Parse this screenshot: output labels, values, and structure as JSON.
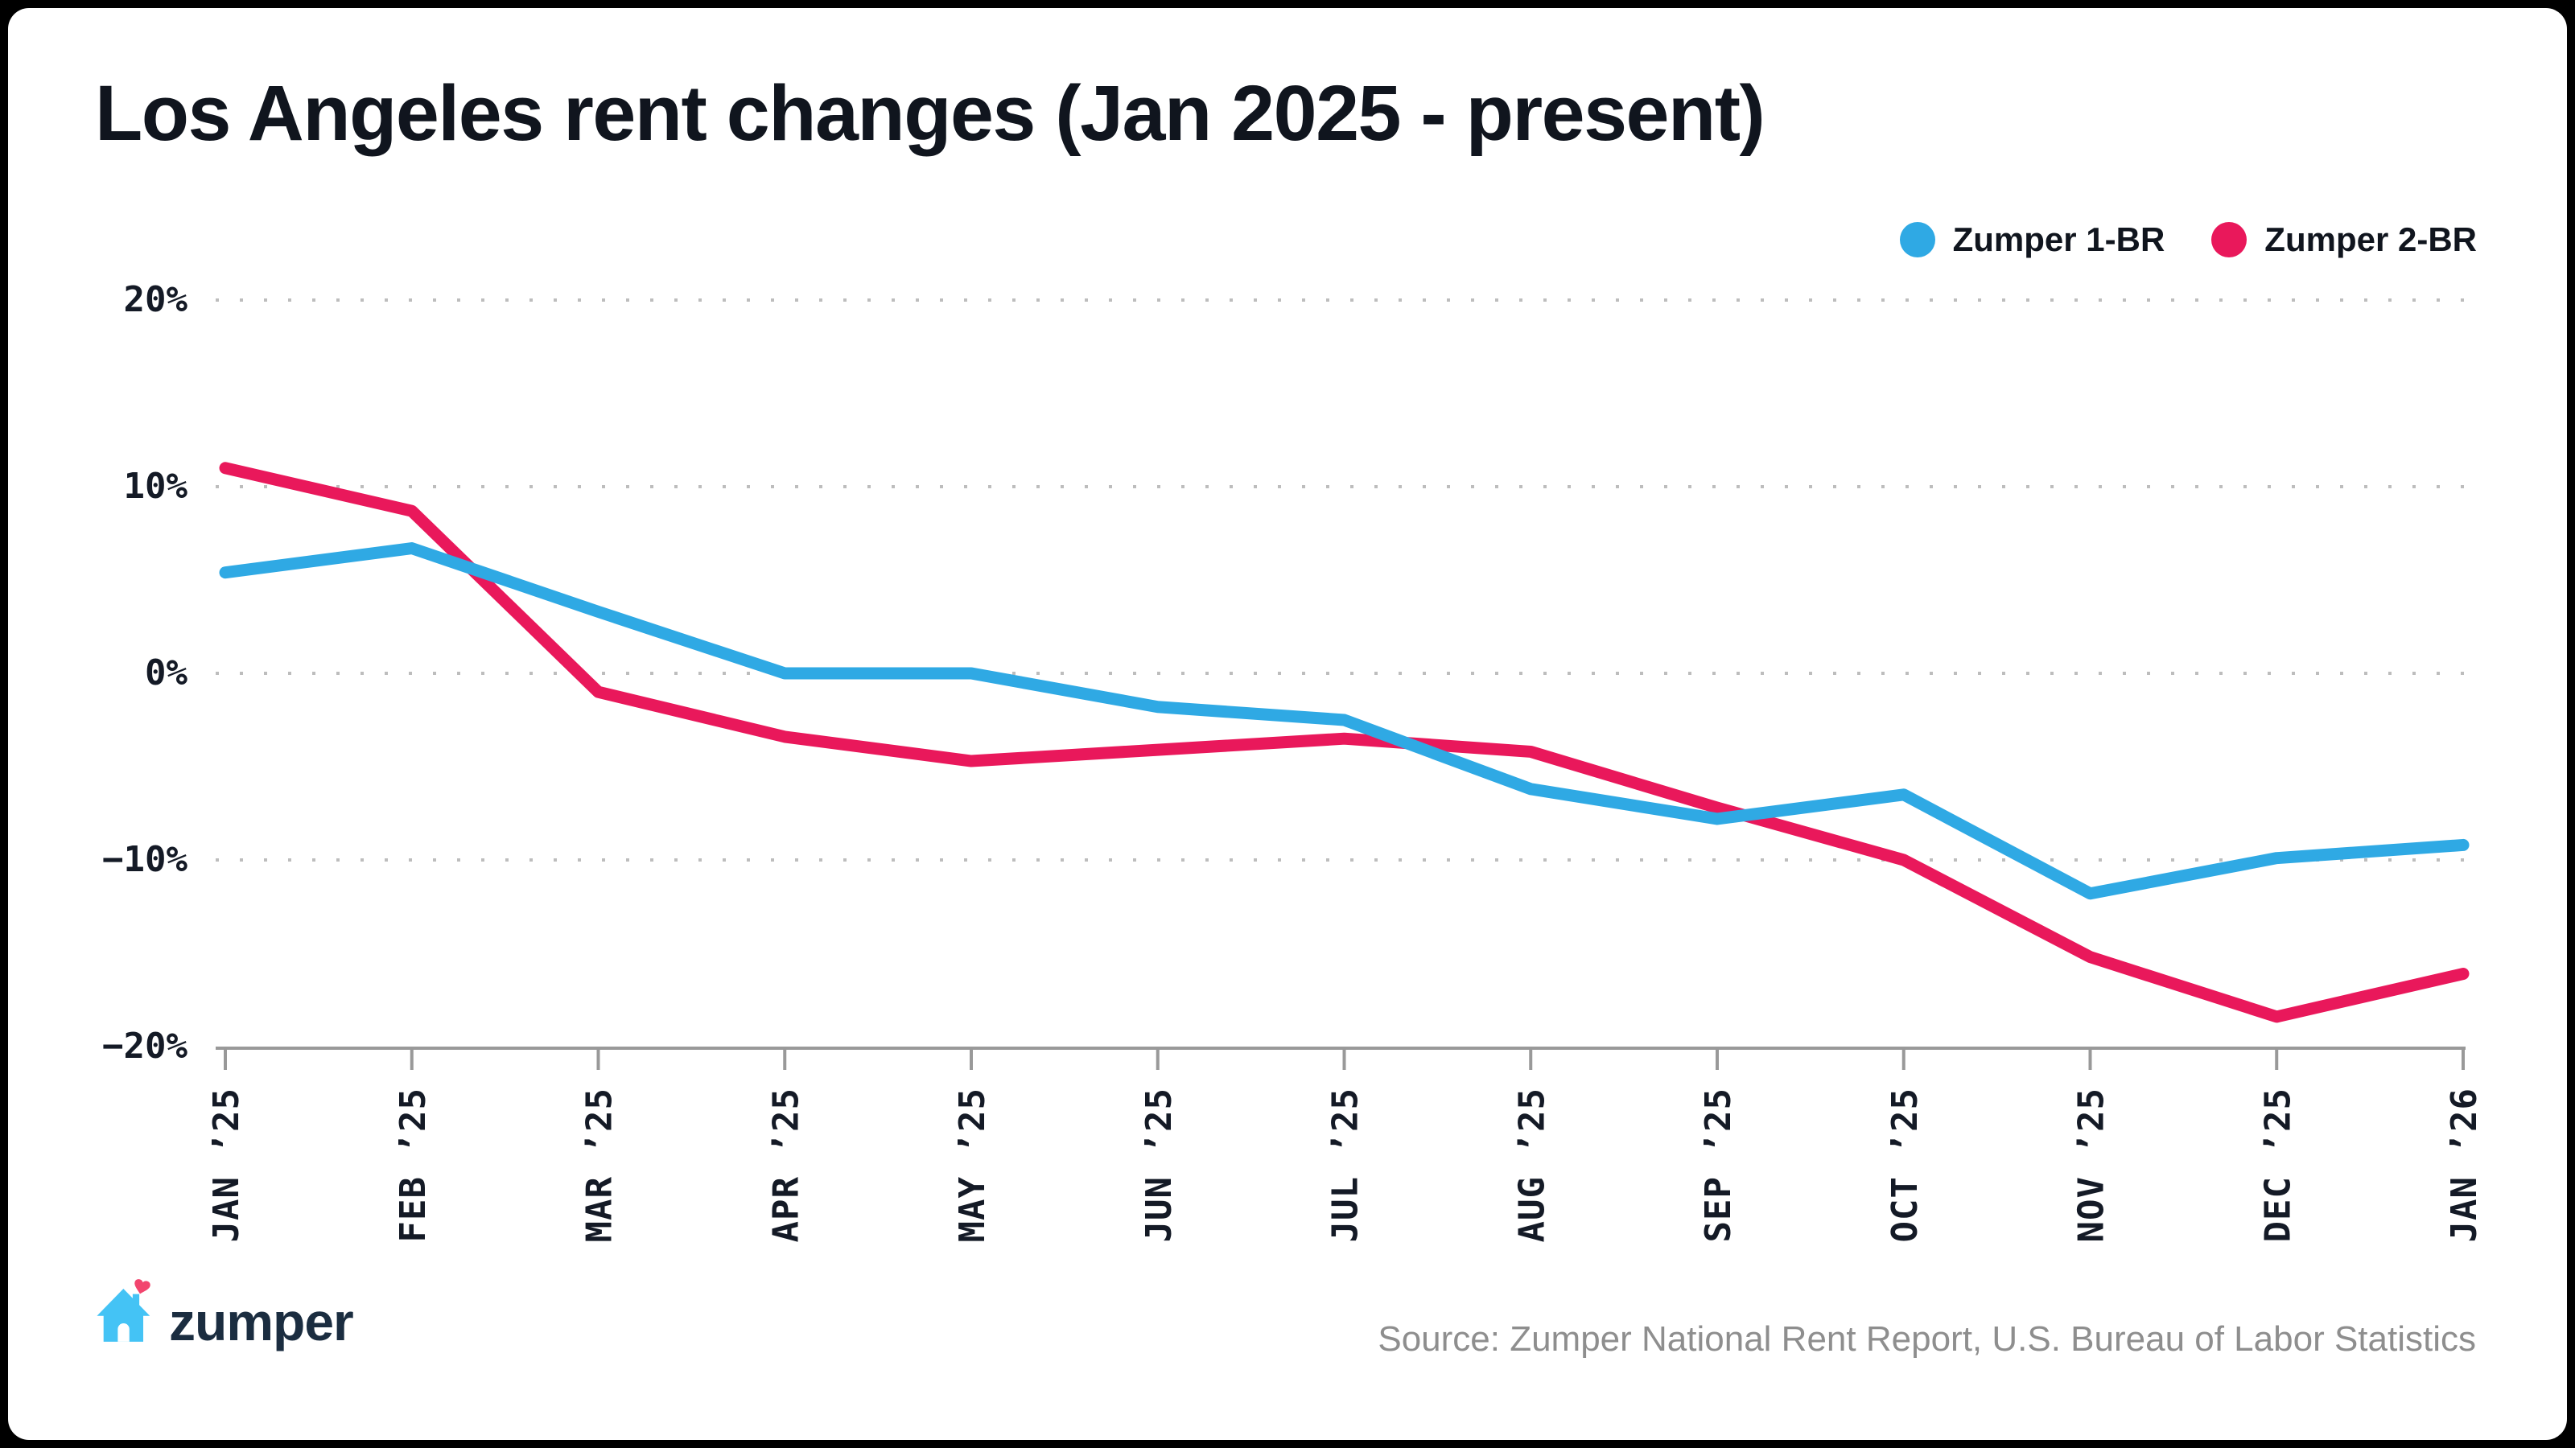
{
  "window": {
    "background": "#000000",
    "card_background": "#ffffff"
  },
  "header": {
    "title": "Los Angeles rent changes (Jan 2025 - present)"
  },
  "legend": {
    "position": "top-right",
    "items": [
      {
        "label": "Zumper 1-BR",
        "color": "#2fa9e4"
      },
      {
        "label": "Zumper 2-BR",
        "color": "#e9185b"
      }
    ]
  },
  "chart_data": {
    "type": "line",
    "title": "Los Angeles rent changes (Jan 2025 - present)",
    "categories": [
      "JAN ’25",
      "FEB ’25",
      "MAR ’25",
      "APR ’25",
      "MAY ’25",
      "JUN ’25",
      "JUL ’25",
      "AUG ’25",
      "SEP ’25",
      "OCT ’25",
      "NOV ’25",
      "DEC ’25",
      "JAN ’26"
    ],
    "series": [
      {
        "name": "Zumper 1-BR",
        "color": "#2fa9e4",
        "values": [
          5.4,
          6.7,
          3.3,
          0.0,
          0.0,
          -1.8,
          -2.5,
          -6.2,
          -7.8,
          -6.5,
          -11.8,
          -9.9,
          -9.2
        ]
      },
      {
        "name": "Zumper 2-BR",
        "color": "#e9185b",
        "values": [
          11.0,
          8.7,
          -1.0,
          -3.4,
          -4.7,
          -4.1,
          -3.5,
          -4.2,
          -7.2,
          -10.0,
          -15.2,
          -18.4,
          -16.1
        ]
      }
    ],
    "y_ticks": [
      {
        "label": "20%",
        "value": 20
      },
      {
        "label": "10%",
        "value": 10
      },
      {
        "label": "0%",
        "value": 0
      },
      {
        "label": "−10%",
        "value": -10
      },
      {
        "label": "−20%",
        "value": -20
      }
    ],
    "ylim": [
      -20,
      20
    ],
    "xlabel": "",
    "ylabel": "",
    "grid": "dotted horizontal",
    "legend_position": "top-right",
    "x_label_rotation": -90
  },
  "footer": {
    "brand": "zumper",
    "source": "Source: Zumper National Rent Report, U.S. Bureau of Labor Statistics"
  },
  "colors": {
    "text_dark": "#10151e",
    "tick_text": "#141a26",
    "grid": "#bdbdbd",
    "axis": "#999999",
    "source_text": "#8e8e8e",
    "wordmark": "#1b2d40",
    "house_blue": "#44c3f5",
    "heart_pink": "#f2456e"
  }
}
